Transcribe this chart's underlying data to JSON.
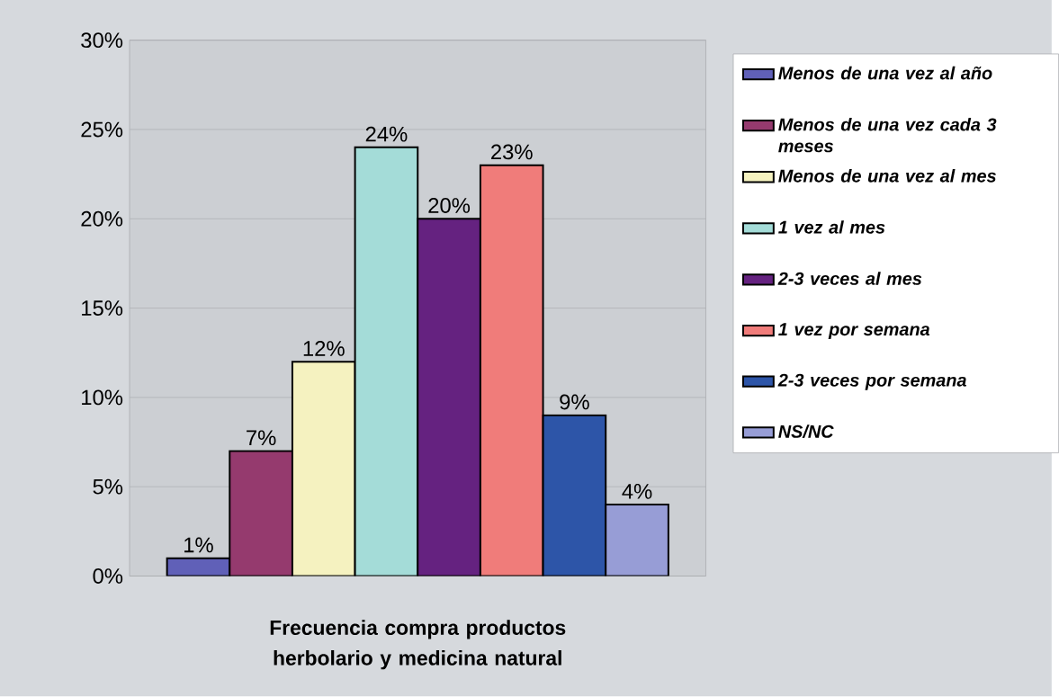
{
  "chart_data": {
    "type": "bar",
    "xlabel": "Frecuencia compra productos herbolario y medicina natural",
    "categories": [
      null
    ],
    "series": [
      {
        "name": "Menos de una vez al año",
        "color": "#6060b8",
        "values": [
          1
        ],
        "value_labels": [
          "1%"
        ]
      },
      {
        "name": "Menos de una vez cada 3 meses",
        "color": "#953a6e",
        "values": [
          7
        ],
        "value_labels": [
          "7%"
        ]
      },
      {
        "name": "Menos de una vez al mes",
        "color": "#f5f2c0",
        "values": [
          12
        ],
        "value_labels": [
          "12%"
        ]
      },
      {
        "name": "1 vez al mes",
        "color": "#a4dcd8",
        "values": [
          24
        ],
        "value_labels": [
          "24%"
        ]
      },
      {
        "name": "2-3 veces al mes",
        "color": "#652280",
        "values": [
          20
        ],
        "value_labels": [
          "20%"
        ]
      },
      {
        "name": "1 vez por semana",
        "color": "#f07c7a",
        "values": [
          23
        ],
        "value_labels": [
          "23%"
        ]
      },
      {
        "name": "2-3 veces por semana",
        "color": "#2d55a8",
        "values": [
          9
        ],
        "value_labels": [
          "9%"
        ]
      },
      {
        "name": "NS/NC",
        "color": "#979dd6",
        "values": [
          4
        ],
        "value_labels": [
          "4%"
        ]
      }
    ],
    "ylim": [
      0,
      30
    ],
    "yticks": [
      {
        "value": 0,
        "label": "0%"
      },
      {
        "value": 5,
        "label": "5%"
      },
      {
        "value": 10,
        "label": "10%"
      },
      {
        "value": 15,
        "label": "15%"
      },
      {
        "value": 20,
        "label": "20%"
      },
      {
        "value": 25,
        "label": "25%"
      },
      {
        "value": 30,
        "label": "30%"
      }
    ],
    "grid": "y",
    "legend": "right"
  }
}
